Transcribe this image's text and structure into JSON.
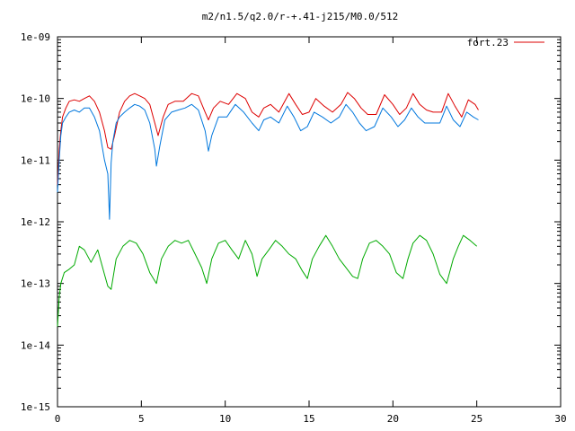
{
  "chart_data": {
    "type": "line",
    "title": "m2/n1.5/q2.0/r-+.41-j215/M0.0/512",
    "xlabel": "",
    "ylabel": "",
    "x_scale": "linear",
    "y_scale": "log",
    "xlim": [
      0,
      30
    ],
    "ylim": [
      1e-15,
      1e-09
    ],
    "x_ticks": [
      0,
      5,
      10,
      15,
      20,
      25,
      30
    ],
    "x_tick_labels": [
      "0",
      "5",
      "10",
      "15",
      "20",
      "25",
      "30"
    ],
    "y_ticks": [
      1e-15,
      1e-14,
      1e-13,
      1e-12,
      1e-11,
      1e-10,
      1e-09
    ],
    "y_tick_labels": [
      "1e-15",
      "1e-14",
      "1e-13",
      "1e-12",
      "1e-11",
      "1e-10",
      "1e-09"
    ],
    "grid": false,
    "legend_position": "top-right",
    "series": [
      {
        "name": "fort.23",
        "color": "#dd0000",
        "x": [
          0.0,
          0.1,
          0.2,
          0.3,
          0.5,
          0.7,
          1.0,
          1.3,
          1.6,
          1.9,
          2.2,
          2.5,
          2.8,
          3.0,
          3.2,
          3.4,
          3.7,
          4.0,
          4.3,
          4.6,
          4.9,
          5.2,
          5.5,
          5.8,
          6.0,
          6.3,
          6.6,
          7.0,
          7.5,
          8.0,
          8.4,
          8.8,
          9.0,
          9.3,
          9.7,
          10.2,
          10.7,
          11.2,
          11.6,
          12.0,
          12.3,
          12.7,
          13.2,
          13.8,
          14.2,
          14.6,
          15.0,
          15.4,
          15.9,
          16.4,
          16.9,
          17.3,
          17.7,
          18.1,
          18.5,
          19.0,
          19.5,
          20.0,
          20.4,
          20.8,
          21.2,
          21.6,
          22.0,
          22.4,
          22.9,
          23.3,
          23.7,
          24.1,
          24.5,
          24.9,
          25.1
        ],
        "y": [
          4e-12,
          1.5e-11,
          3e-11,
          5e-11,
          7e-11,
          9e-11,
          9.5e-11,
          9e-11,
          1e-10,
          1.1e-10,
          9e-11,
          6e-11,
          3e-11,
          1.6e-11,
          1.5e-11,
          2.5e-11,
          6e-11,
          9e-11,
          1.1e-10,
          1.2e-10,
          1.1e-10,
          1e-10,
          8e-11,
          4e-11,
          2.5e-11,
          5e-11,
          8e-11,
          9e-11,
          9e-11,
          1.2e-10,
          1.1e-10,
          6e-11,
          4.5e-11,
          7e-11,
          9e-11,
          8e-11,
          1.2e-10,
          1e-10,
          6e-11,
          5e-11,
          7e-11,
          8e-11,
          6e-11,
          1.2e-10,
          8e-11,
          5.5e-11,
          6e-11,
          1e-10,
          7.5e-11,
          6e-11,
          8e-11,
          1.25e-10,
          1e-10,
          7e-11,
          5.5e-11,
          5.5e-11,
          1.15e-10,
          8e-11,
          5.5e-11,
          7e-11,
          1.2e-10,
          8e-11,
          6.5e-11,
          6e-11,
          6e-11,
          1.2e-10,
          7.5e-11,
          5e-11,
          9.5e-11,
          8e-11,
          6.5e-11
        ]
      },
      {
        "color": "#0077dd",
        "x": [
          0.0,
          0.1,
          0.2,
          0.3,
          0.5,
          0.7,
          1.0,
          1.3,
          1.6,
          1.9,
          2.2,
          2.5,
          2.8,
          3.0,
          3.1,
          3.2,
          3.3,
          3.5,
          3.7,
          4.0,
          4.3,
          4.6,
          4.9,
          5.2,
          5.5,
          5.8,
          5.9,
          6.1,
          6.4,
          6.8,
          7.2,
          7.6,
          8.0,
          8.4,
          8.8,
          9.0,
          9.2,
          9.6,
          10.1,
          10.6,
          11.1,
          11.6,
          12.0,
          12.3,
          12.7,
          13.2,
          13.7,
          14.1,
          14.5,
          14.9,
          15.3,
          15.8,
          16.3,
          16.8,
          17.2,
          17.6,
          18.0,
          18.4,
          18.9,
          19.4,
          19.9,
          20.3,
          20.7,
          21.1,
          21.5,
          21.9,
          22.3,
          22.8,
          23.2,
          23.6,
          24.0,
          24.4,
          24.8,
          25.1
        ],
        "y": [
          3e-12,
          1e-11,
          2.5e-11,
          4e-11,
          5e-11,
          6e-11,
          6.5e-11,
          6e-11,
          7e-11,
          7e-11,
          5e-11,
          3e-11,
          1e-11,
          6e-12,
          1.1e-12,
          9e-12,
          2e-11,
          4e-11,
          5e-11,
          6e-11,
          7e-11,
          8e-11,
          7.5e-11,
          6.5e-11,
          4e-11,
          1.5e-11,
          8e-12,
          1.7e-11,
          4.5e-11,
          6e-11,
          6.5e-11,
          7e-11,
          8e-11,
          6.5e-11,
          3e-11,
          1.4e-11,
          2.5e-11,
          5e-11,
          5e-11,
          8e-11,
          6e-11,
          4e-11,
          3e-11,
          4.5e-11,
          5e-11,
          4e-11,
          7.5e-11,
          5e-11,
          3e-11,
          3.5e-11,
          6e-11,
          5e-11,
          4e-11,
          5e-11,
          8e-11,
          6e-11,
          4e-11,
          3e-11,
          3.5e-11,
          7e-11,
          5e-11,
          3.5e-11,
          4.5e-11,
          7e-11,
          5e-11,
          4e-11,
          4e-11,
          4e-11,
          7.5e-11,
          4.5e-11,
          3.5e-11,
          6e-11,
          5e-11,
          4.5e-11
        ]
      },
      {
        "color": "#00aa00",
        "x": [
          0.0,
          0.1,
          0.2,
          0.4,
          0.7,
          1.0,
          1.3,
          1.6,
          2.0,
          2.4,
          2.8,
          3.0,
          3.2,
          3.5,
          3.9,
          4.3,
          4.7,
          5.1,
          5.5,
          5.9,
          6.2,
          6.6,
          7.0,
          7.4,
          7.8,
          8.2,
          8.6,
          8.9,
          9.2,
          9.6,
          10.0,
          10.4,
          10.8,
          11.2,
          11.6,
          11.9,
          12.2,
          12.6,
          13.0,
          13.4,
          13.8,
          14.2,
          14.6,
          14.9,
          15.2,
          15.6,
          16.0,
          16.4,
          16.8,
          17.2,
          17.6,
          17.9,
          18.2,
          18.6,
          19.0,
          19.4,
          19.8,
          20.2,
          20.6,
          20.9,
          21.2,
          21.6,
          22.0,
          22.4,
          22.8,
          23.2,
          23.6,
          23.9,
          24.2,
          24.6,
          25.0
        ],
        "y": [
          2e-14,
          6e-14,
          1e-13,
          1.5e-13,
          1.7e-13,
          2e-13,
          4e-13,
          3.5e-13,
          2.2e-13,
          3.5e-13,
          1.4e-13,
          9e-14,
          8e-14,
          2.5e-13,
          4e-13,
          5e-13,
          4.5e-13,
          3e-13,
          1.5e-13,
          1e-13,
          2.5e-13,
          4e-13,
          5e-13,
          4.5e-13,
          5e-13,
          3e-13,
          1.8e-13,
          1e-13,
          2.5e-13,
          4.5e-13,
          5e-13,
          3.5e-13,
          2.5e-13,
          5e-13,
          3e-13,
          1.3e-13,
          2.5e-13,
          3.5e-13,
          5e-13,
          4e-13,
          3e-13,
          2.5e-13,
          1.6e-13,
          1.2e-13,
          2.5e-13,
          4e-13,
          6e-13,
          4e-13,
          2.5e-13,
          1.8e-13,
          1.3e-13,
          1.2e-13,
          2.5e-13,
          4.5e-13,
          5e-13,
          4e-13,
          3e-13,
          1.5e-13,
          1.2e-13,
          2.5e-13,
          4.5e-13,
          6e-13,
          5e-13,
          3e-13,
          1.4e-13,
          1e-13,
          2.5e-13,
          4e-13,
          6e-13,
          5e-13,
          4e-13
        ]
      }
    ]
  }
}
